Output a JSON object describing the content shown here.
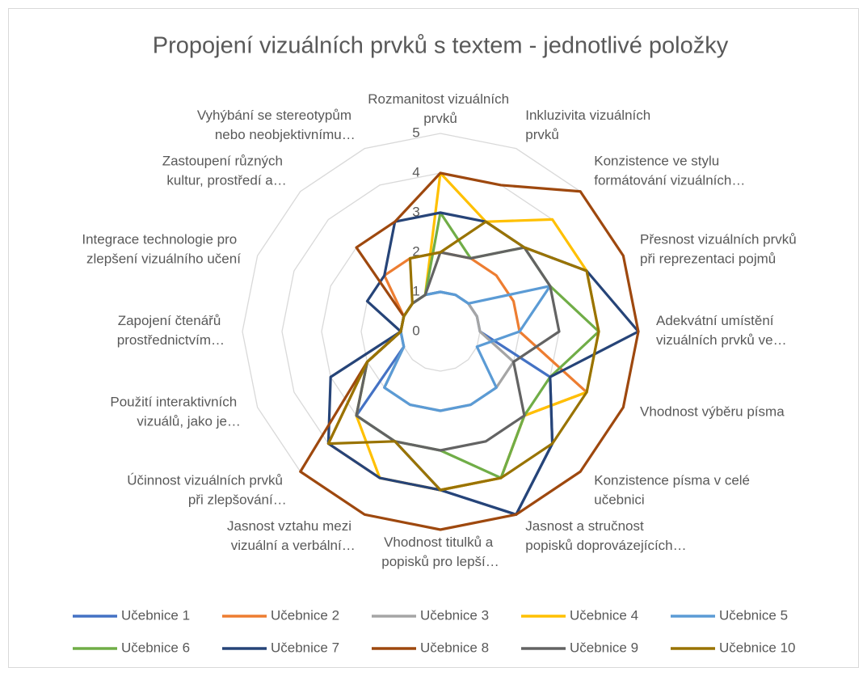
{
  "chart_data": {
    "type": "radar",
    "title": "Propojení vizuálních prvků s textem - jednotlivé položky",
    "categories": [
      "Rozmanitost vizuálních prvků",
      "Inkluzivita vizuálních prvků",
      "Konzistence ve stylu formátování vizuálních…",
      "Přesnost vizuálních prvků při reprezentaci pojmů",
      "Adekvátní umístění vizuálních prvků ve…",
      "Vhodnost výběru písma",
      "Konzistence písma v celé učebnici",
      "Jasnost a stručnost popisků doprovázejících…",
      "Vhodnost titulků a popisků pro lepší…",
      "Jasnost vztahu mezi vizuální a verbální…",
      "Účinnost vizuálních prvků při zlepšování…",
      "Použití interaktivních vizuálů, jako je…",
      "Zapojení čtenářů prostřednictvím…",
      "Integrace technologie pro zlepšení vizuálního učení",
      "Zastoupení různých kultur, prostředí a…",
      "Vyhýbání se stereotypům nebo neobjektivnímu…"
    ],
    "ylim": [
      0,
      5
    ],
    "yticks": [
      0,
      1,
      2,
      3,
      4,
      5
    ],
    "grid": true,
    "legend": "bottom",
    "series": [
      {
        "name": "Učebnice 1",
        "color": "#4472C4",
        "values": [
          1,
          1,
          1,
          1,
          1,
          3,
          4,
          5,
          4,
          3,
          3,
          1,
          1,
          1,
          1,
          1
        ]
      },
      {
        "name": "Učebnice 2",
        "color": "#ED7D31",
        "values": [
          2,
          2,
          2,
          2,
          2,
          4,
          3,
          4,
          4,
          4,
          4,
          2,
          1,
          1,
          2,
          2
        ]
      },
      {
        "name": "Učebnice 3",
        "color": "#A5A5A5",
        "values": [
          1,
          1,
          1,
          1,
          1,
          2,
          2,
          2,
          2,
          2,
          2,
          1,
          1,
          1,
          1,
          1
        ]
      },
      {
        "name": "Učebnice 4",
        "color": "#FFC000",
        "values": [
          4,
          3,
          4,
          4,
          4,
          4,
          3,
          4,
          4,
          4,
          3,
          2,
          1,
          1,
          1,
          1
        ]
      },
      {
        "name": "Učebnice 5",
        "color": "#5B9BD5",
        "values": [
          1,
          1,
          1,
          3,
          2,
          1,
          2,
          2,
          2,
          2,
          2,
          1,
          1,
          1,
          1,
          1
        ]
      },
      {
        "name": "Učebnice 6",
        "color": "#70AD47",
        "values": [
          3,
          2,
          3,
          3,
          4,
          3,
          3,
          4,
          3,
          3,
          3,
          2,
          1,
          1,
          1,
          1
        ]
      },
      {
        "name": "Učebnice 7",
        "color": "#264478",
        "values": [
          3,
          3,
          3,
          4,
          5,
          3,
          4,
          5,
          4,
          4,
          4,
          3,
          1,
          2,
          2,
          3
        ]
      },
      {
        "name": "Učebnice 8",
        "color": "#9E480E",
        "values": [
          4,
          4,
          5,
          5,
          5,
          5,
          5,
          5,
          5,
          5,
          5,
          2,
          1,
          1,
          3,
          3
        ]
      },
      {
        "name": "Učebnice 9",
        "color": "#636363",
        "values": [
          2,
          2,
          3,
          3,
          3,
          2,
          3,
          3,
          3,
          3,
          3,
          2,
          1,
          1,
          1,
          1
        ]
      },
      {
        "name": "Učebnice 10",
        "color": "#997300",
        "values": [
          2,
          3,
          3,
          4,
          4,
          4,
          4,
          4,
          4,
          3,
          4,
          2,
          1,
          1,
          1,
          2
        ]
      }
    ]
  }
}
